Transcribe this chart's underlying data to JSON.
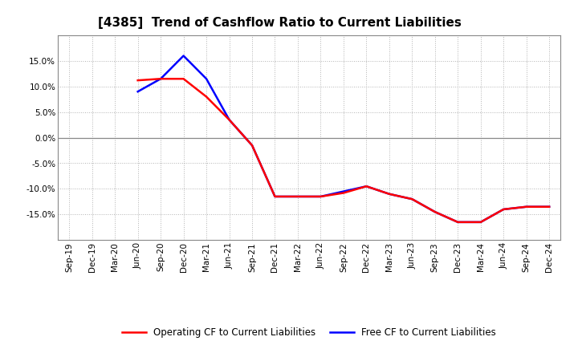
{
  "title": "[4385]  Trend of Cashflow Ratio to Current Liabilities",
  "x_labels": [
    "Sep-19",
    "Dec-19",
    "Mar-20",
    "Jun-20",
    "Sep-20",
    "Dec-20",
    "Mar-21",
    "Jun-21",
    "Sep-21",
    "Dec-21",
    "Mar-22",
    "Jun-22",
    "Sep-22",
    "Dec-22",
    "Mar-23",
    "Jun-23",
    "Sep-23",
    "Dec-23",
    "Mar-24",
    "Jun-24",
    "Sep-24",
    "Dec-24"
  ],
  "operating_cf": [
    null,
    null,
    null,
    11.2,
    11.5,
    11.5,
    8.0,
    3.5,
    -1.5,
    -11.5,
    -11.5,
    -11.5,
    -10.8,
    -9.5,
    -11.0,
    -12.0,
    -14.5,
    -16.5,
    -16.5,
    -14.0,
    -13.5,
    -13.5
  ],
  "free_cf": [
    null,
    null,
    null,
    9.0,
    11.5,
    16.0,
    11.5,
    3.5,
    -1.5,
    -11.5,
    -11.5,
    -11.5,
    -10.5,
    -9.5,
    -11.0,
    -12.0,
    -14.5,
    -16.5,
    -16.5,
    -14.0,
    -13.5,
    -13.5
  ],
  "operating_cf_color": "#ff0000",
  "free_cf_color": "#0000ff",
  "ylim": [
    -20.0,
    20.0
  ],
  "yticks": [
    -15.0,
    -10.0,
    -5.0,
    0.0,
    5.0,
    10.0,
    15.0
  ],
  "background_color": "#ffffff",
  "grid_color": "#aaaaaa",
  "title_fontsize": 11,
  "tick_fontsize": 7.5,
  "legend_fontsize": 8.5,
  "linewidth": 1.8
}
